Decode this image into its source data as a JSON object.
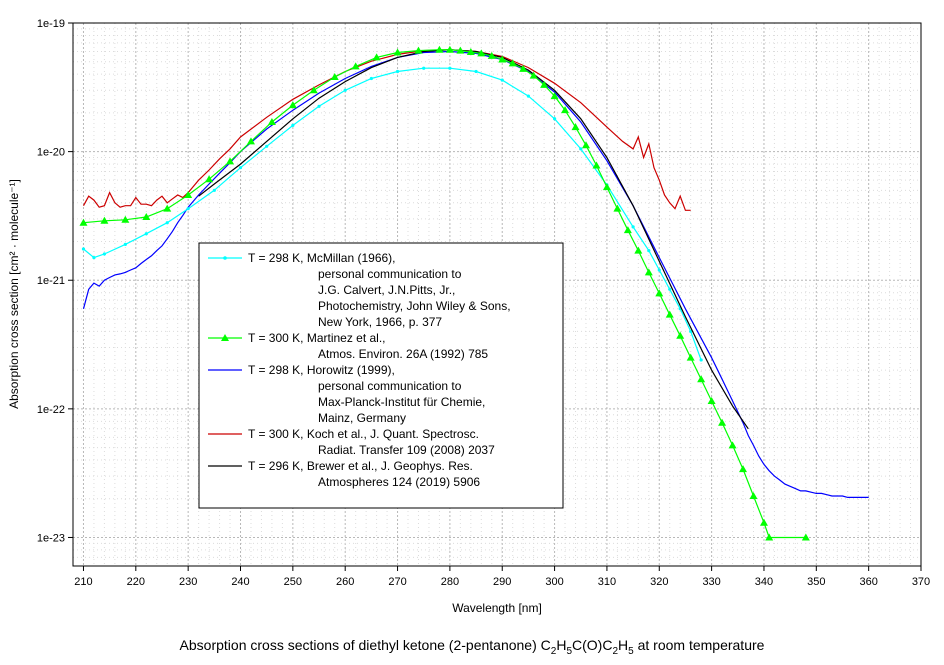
{
  "chart_data": {
    "type": "line",
    "caption_parts": [
      "Absorption cross sections of diethyl ketone (2-pentanone) C",
      "2",
      "H",
      "5",
      "C(O)C",
      "2",
      "H",
      "5",
      " at room temperature"
    ],
    "xlabel": "Wavelength [nm]",
    "ylabel": "Absorption cross section [cm² · molecule⁻¹]",
    "xlim": [
      208,
      370
    ],
    "ylim": [
      6e-24,
      1e-19
    ],
    "yscale": "log",
    "grid": true,
    "x_ticks": [
      210,
      220,
      230,
      240,
      250,
      260,
      270,
      280,
      290,
      300,
      310,
      320,
      330,
      340,
      350,
      360,
      370
    ],
    "y_ticks": [
      1e-23,
      1e-22,
      1e-21,
      1e-20,
      1e-19
    ],
    "y_tick_labels": [
      "1e-23",
      "1e-22",
      "1e-21",
      "1e-20",
      "1e-19"
    ],
    "legend_position": "center-left",
    "series": [
      {
        "name": "T = 298 K, McMillan (1966), personal communication to J.G. Calvert, J.N.Pitts, Jr., Photochemistry, John Wiley & Sons, New York, 1966, p. 377",
        "legend_lines": [
          "T = 298 K, McMillan (1966),",
          "personal communication to",
          "J.G. Calvert, J.N.Pitts, Jr.,",
          "Photochemistry, John Wiley & Sons,",
          "New York, 1966, p. 377"
        ],
        "color": "#00ffff",
        "marker": "dot",
        "x": [
          210,
          212,
          214,
          218,
          222,
          226,
          230,
          235,
          240,
          245,
          250,
          255,
          260,
          265,
          270,
          275,
          280,
          285,
          290,
          295,
          300,
          305,
          310,
          315,
          318,
          320,
          322,
          324,
          326,
          328
        ],
        "y": [
          1.75e-21,
          1.5e-21,
          1.6e-21,
          1.9e-21,
          2.3e-21,
          2.8e-21,
          3.6e-21,
          5e-21,
          7.5e-21,
          1.1e-20,
          1.6e-20,
          2.25e-20,
          3e-20,
          3.7e-20,
          4.2e-20,
          4.45e-20,
          4.45e-20,
          4.2e-20,
          3.6e-20,
          2.7e-20,
          1.8e-20,
          1.05e-20,
          5.5e-21,
          2.6e-21,
          1.7e-21,
          1.2e-21,
          8.5e-22,
          6e-22,
          4e-22,
          2.4e-22
        ]
      },
      {
        "name": "T = 300 K, Martinez et al., Atmos. Environ. 26A (1992) 785",
        "legend_lines": [
          "T = 300 K, Martinez et al.,",
          "Atmos. Environ. 26A (1992) 785"
        ],
        "color": "#00ff00",
        "marker": "triangle",
        "x": [
          210,
          214,
          218,
          222,
          226,
          230,
          234,
          238,
          242,
          246,
          250,
          254,
          258,
          262,
          266,
          270,
          274,
          278,
          280,
          282,
          284,
          286,
          288,
          290,
          292,
          294,
          296,
          298,
          300,
          302,
          304,
          306,
          308,
          310,
          312,
          314,
          316,
          318,
          320,
          322,
          324,
          326,
          328,
          330,
          332,
          334,
          336,
          338,
          340,
          341,
          348
        ],
        "y": [
          2.8e-21,
          2.9e-21,
          2.95e-21,
          3.1e-21,
          3.6e-21,
          4.6e-21,
          6.1e-21,
          8.4e-21,
          1.2e-20,
          1.7e-20,
          2.3e-20,
          3e-20,
          3.8e-20,
          4.6e-20,
          5.4e-20,
          5.9e-20,
          6.1e-20,
          6.2e-20,
          6.2e-20,
          6.1e-20,
          5.95e-20,
          5.8e-20,
          5.55e-20,
          5.2e-20,
          4.85e-20,
          4.4e-20,
          3.9e-20,
          3.3e-20,
          2.7e-20,
          2.1e-20,
          1.55e-20,
          1.12e-20,
          7.8e-21,
          5.3e-21,
          3.6e-21,
          2.45e-21,
          1.7e-21,
          1.15e-21,
          7.9e-22,
          5.4e-22,
          3.7e-22,
          2.5e-22,
          1.7e-22,
          1.15e-22,
          7.8e-23,
          5.2e-23,
          3.4e-23,
          2.1e-23,
          1.3e-23,
          1e-23,
          1e-23
        ]
      },
      {
        "name": "T = 298 K, Horowitz (1999), personal communication to Max-Planck-Institut für Chemie, Mainz, Germany",
        "legend_lines": [
          "T = 298 K, Horowitz (1999),",
          "personal communication to",
          "Max-Planck-Institut für Chemie,",
          "Mainz, Germany"
        ],
        "color": "#0000ff",
        "marker": "none",
        "x": [
          210,
          211,
          212,
          213,
          214,
          215,
          216,
          217,
          218,
          219,
          220,
          221,
          222,
          223,
          224,
          225,
          226,
          227,
          228,
          229,
          230,
          232,
          234,
          236,
          238,
          240,
          245,
          250,
          255,
          260,
          265,
          270,
          275,
          280,
          285,
          290,
          295,
          300,
          305,
          310,
          315,
          320,
          325,
          330,
          332,
          334,
          336,
          337,
          338,
          339,
          340,
          341,
          342,
          343,
          344,
          345,
          346,
          347,
          348,
          349,
          350,
          351,
          352,
          353,
          354,
          355,
          356,
          357,
          358,
          359,
          360
        ],
        "y": [
          6e-22,
          8.5e-22,
          9.5e-22,
          9e-22,
          1e-21,
          1.05e-21,
          1.1e-21,
          1.12e-21,
          1.15e-21,
          1.2e-21,
          1.25e-21,
          1.35e-21,
          1.45e-21,
          1.55e-21,
          1.7e-21,
          1.85e-21,
          2.1e-21,
          2.4e-21,
          2.8e-21,
          3.2e-21,
          3.7e-21,
          4.6e-21,
          5.6e-21,
          6.8e-21,
          8.2e-21,
          1e-20,
          1.5e-20,
          2.1e-20,
          2.85e-20,
          3.7e-20,
          4.6e-20,
          5.4e-20,
          5.9e-20,
          6e-20,
          5.8e-20,
          5.2e-20,
          4.2e-20,
          2.9e-20,
          1.7e-20,
          8.5e-21,
          3.8e-21,
          1.5e-21,
          6e-22,
          2.5e-22,
          1.7e-22,
          1.15e-22,
          7.8e-23,
          6.2e-23,
          5.2e-23,
          4.3e-23,
          3.7e-23,
          3.3e-23,
          3e-23,
          2.8e-23,
          2.6e-23,
          2.5e-23,
          2.4e-23,
          2.3e-23,
          2.3e-23,
          2.25e-23,
          2.2e-23,
          2.2e-23,
          2.15e-23,
          2.1e-23,
          2.1e-23,
          2.1e-23,
          2.05e-23,
          2.05e-23,
          2.05e-23,
          2.05e-23,
          2.05e-23
        ]
      },
      {
        "name": "T = 300 K, Koch et al., J. Quant. Spectrosc. Radiat. Transfer 109 (2008) 2037",
        "legend_lines": [
          "T = 300 K, Koch et al., J. Quant. Spectrosc.",
          "Radiat. Transfer 109 (2008) 2037"
        ],
        "color": "#cc0000",
        "marker": "none",
        "x": [
          210,
          211,
          212,
          213,
          214,
          215,
          216,
          217,
          218,
          219,
          220,
          221,
          222,
          223,
          224,
          225,
          226,
          227,
          228,
          229,
          230,
          232,
          234,
          236,
          238,
          240,
          245,
          250,
          255,
          260,
          265,
          270,
          275,
          280,
          285,
          290,
          295,
          300,
          305,
          310,
          313,
          315,
          316,
          317,
          318,
          319,
          320,
          321,
          322,
          323,
          324,
          325,
          326
        ],
        "y": [
          3.8e-21,
          4.5e-21,
          4.2e-21,
          3.7e-21,
          3.8e-21,
          4.8e-21,
          4e-21,
          3.7e-21,
          3.8e-21,
          3.8e-21,
          4.4e-21,
          3.9e-21,
          3.9e-21,
          3.8e-21,
          4.2e-21,
          4.5e-21,
          4e-21,
          4.3e-21,
          4.6e-21,
          4.4e-21,
          4.8e-21,
          6e-21,
          7.2e-21,
          8.8e-21,
          1.05e-20,
          1.3e-20,
          1.85e-20,
          2.55e-20,
          3.3e-20,
          4.2e-20,
          5.05e-20,
          5.7e-20,
          6.1e-20,
          6.2e-20,
          6e-20,
          5.5e-20,
          4.5e-20,
          3.4e-20,
          2.4e-20,
          1.55e-20,
          1.2e-20,
          1.05e-20,
          1.3e-20,
          9e-21,
          1.15e-20,
          7.5e-21,
          6e-21,
          4.6e-21,
          4e-21,
          3.6e-21,
          4.5e-21,
          3.5e-21,
          3.5e-21
        ]
      },
      {
        "name": "T = 296 K, Brewer et al., J. Geophys. Res. Atmospheres 124 (2019) 5906",
        "legend_lines": [
          "T = 296 K, Brewer et al., J. Geophys. Res.",
          "Atmospheres 124 (2019) 5906"
        ],
        "color": "#000000",
        "marker": "none",
        "x": [
          232,
          235,
          240,
          245,
          250,
          255,
          260,
          265,
          270,
          275,
          280,
          285,
          290,
          295,
          300,
          305,
          310,
          315,
          320,
          325,
          330,
          334,
          337
        ],
        "y": [
          4.5e-21,
          5.6e-21,
          8e-21,
          1.2e-20,
          1.8e-20,
          2.6e-20,
          3.5e-20,
          4.5e-20,
          5.4e-20,
          6e-20,
          6.2e-20,
          6e-20,
          5.4e-20,
          4.3e-20,
          3e-20,
          1.8e-20,
          9e-21,
          3.8e-21,
          1.4e-21,
          5.2e-22,
          2e-22,
          1.05e-22,
          7e-23
        ]
      }
    ]
  }
}
